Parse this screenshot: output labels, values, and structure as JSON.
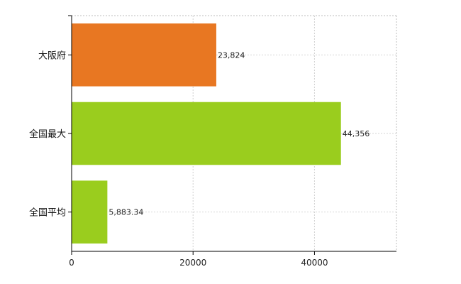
{
  "chart_data": {
    "type": "bar",
    "orientation": "horizontal",
    "categories": [
      "大阪府",
      "全国最大",
      "全国平均"
    ],
    "values": [
      23824,
      44356,
      5883.34
    ],
    "value_labels": [
      "23,824",
      "44,356",
      "5,883.34"
    ],
    "bar_colors": [
      "#e87722",
      "#9acd1e",
      "#9acd1e"
    ],
    "xlim": [
      0,
      53500
    ],
    "x_ticks": [
      0,
      20000,
      40000
    ],
    "x_tick_labels": [
      "0",
      "20000",
      "40000"
    ],
    "grid": true,
    "legend": "none",
    "title": "",
    "xlabel": "",
    "ylabel": ""
  }
}
